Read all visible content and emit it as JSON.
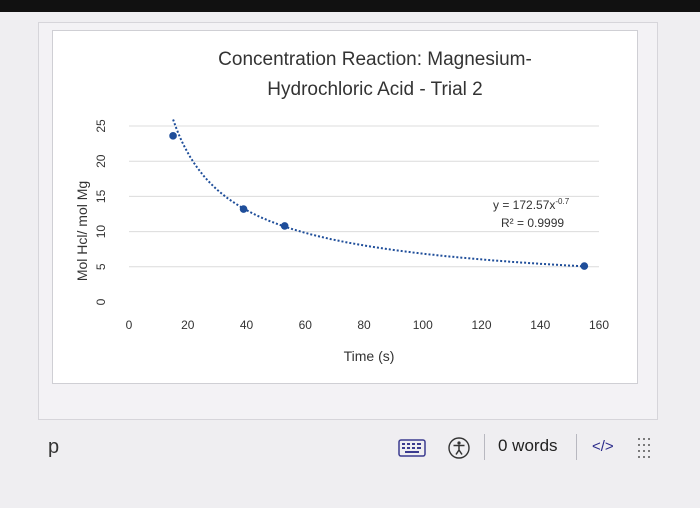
{
  "chart_data": {
    "type": "scatter",
    "title_lines": [
      "Concentration Reaction: Magnesium-",
      "Hydrochloric Acid - Trial 2"
    ],
    "xlabel": "Time (s)",
    "ylabel": "Mol Hcl/ mol Mg",
    "xlim": [
      0,
      160
    ],
    "ylim": [
      0,
      25
    ],
    "x_ticks": [
      0,
      20,
      40,
      60,
      80,
      100,
      120,
      140,
      160
    ],
    "y_ticks": [
      0,
      5,
      10,
      15,
      20,
      25
    ],
    "grid": "horizontal",
    "points": [
      {
        "x": 15,
        "y": 23.6
      },
      {
        "x": 39,
        "y": 13.2
      },
      {
        "x": 53,
        "y": 10.8
      },
      {
        "x": 155,
        "y": 5.1
      }
    ],
    "trendline": {
      "type": "power",
      "a": 172.57,
      "b": -0.7
    },
    "equation": "y = 172.57x",
    "equation_exponent": "-0.7",
    "r_squared": "R² = 0.9999",
    "point_color": "#1f4e9a",
    "trend_color": "#1f4e9a"
  },
  "editor": {
    "paragraph_text": "p",
    "word_count": "0 words",
    "code_toggle": "</>"
  },
  "icons": {
    "keyboard": "keyboard-icon",
    "accessibility": "accessibility-icon",
    "grip": "grip-icon"
  }
}
